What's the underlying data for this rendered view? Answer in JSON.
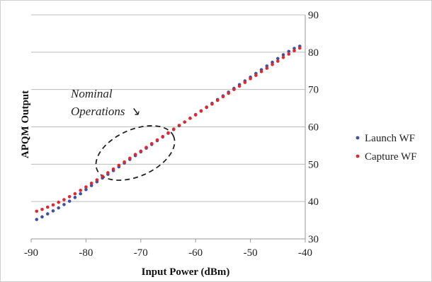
{
  "chart_data": {
    "type": "scatter",
    "title": "",
    "xlabel": "Input Power (dBm)",
    "ylabel": "APQM Output",
    "xlim": [
      -90,
      -40
    ],
    "ylim": [
      30,
      90
    ],
    "x_ticks": [
      "-90",
      "-80",
      "-70",
      "-60",
      "-50",
      "-40"
    ],
    "y_ticks": [
      "30",
      "40",
      "50",
      "60",
      "70",
      "80",
      "90"
    ],
    "y_axis_side": "right",
    "grid": "horizontal",
    "legend": {
      "position": "right",
      "entries": [
        "Launch WF",
        "Capture WF"
      ]
    },
    "annotation": {
      "line1": "Nominal",
      "line2": "Operations",
      "arrow": "↘",
      "target_x": -71,
      "target_y": 53
    },
    "colors": {
      "Launch WF": "#3f4fa6",
      "Capture WF": "#e0282e"
    },
    "series": [
      {
        "name": "Launch WF",
        "x": [
          -89,
          -88,
          -87,
          -86,
          -85,
          -84,
          -83,
          -82,
          -81,
          -80,
          -79,
          -78,
          -77,
          -76,
          -75,
          -74,
          -73,
          -72,
          -71,
          -70,
          -69,
          -68,
          -67,
          -66,
          -65,
          -64,
          -63,
          -62,
          -61,
          -60,
          -59,
          -58,
          -57,
          -56,
          -55,
          -54,
          -53,
          -52,
          -51,
          -50,
          -49,
          -48,
          -47,
          -46,
          -45,
          -44,
          -43,
          -42,
          -41
        ],
        "y": [
          35.2,
          35.9,
          36.7,
          37.5,
          38.3,
          39.2,
          40.1,
          41.1,
          42.1,
          43.2,
          44.3,
          45.3,
          46.3,
          47.3,
          48.3,
          49.3,
          50.3,
          51.3,
          52.3,
          53.3,
          54.3,
          55.3,
          56.3,
          57.3,
          58.3,
          59.3,
          60.3,
          61.3,
          62.3,
          63.3,
          64.3,
          65.3,
          66.3,
          67.3,
          68.3,
          69.3,
          70.3,
          71.3,
          72.3,
          73.3,
          74.3,
          75.3,
          76.3,
          77.3,
          78.3,
          79.3,
          80.2,
          81.0,
          81.6
        ]
      },
      {
        "name": "Capture WF",
        "x": [
          -89,
          -88,
          -87,
          -86,
          -85,
          -84,
          -83,
          -82,
          -81,
          -80,
          -79,
          -78,
          -77,
          -76,
          -75,
          -74,
          -73,
          -72,
          -71,
          -70,
          -69,
          -68,
          -67,
          -66,
          -65,
          -64,
          -63,
          -62,
          -61,
          -60,
          -59,
          -58,
          -57,
          -56,
          -55,
          -54,
          -53,
          -52,
          -51,
          -50,
          -49,
          -48,
          -47,
          -46,
          -45,
          -44,
          -43,
          -42,
          -41
        ],
        "y": [
          37.4,
          37.9,
          38.5,
          39.1,
          39.8,
          40.5,
          41.3,
          42.1,
          43.0,
          43.9,
          44.9,
          45.8,
          46.8,
          47.7,
          48.7,
          49.7,
          50.6,
          51.6,
          52.6,
          53.5,
          54.5,
          55.5,
          56.5,
          57.4,
          58.4,
          59.4,
          60.4,
          61.3,
          62.3,
          63.2,
          64.2,
          65.2,
          66.1,
          67.1,
          68.1,
          69.0,
          70.0,
          70.9,
          71.9,
          72.9,
          73.8,
          74.8,
          75.7,
          76.7,
          77.6,
          78.6,
          79.5,
          80.4,
          81.1
        ]
      }
    ]
  }
}
